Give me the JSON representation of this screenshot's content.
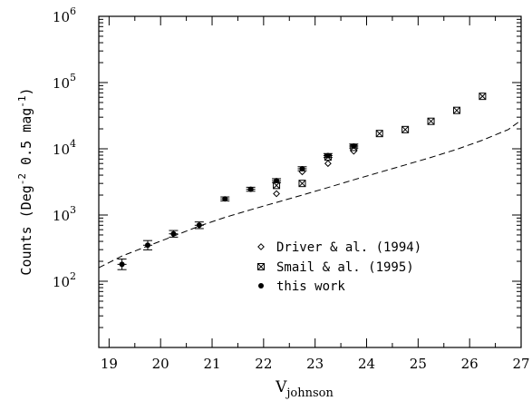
{
  "chart_data": {
    "type": "scatter",
    "xlabel_main": "V",
    "xlabel_sub": "johnson",
    "ylabel_main": "Counts (Deg",
    "ylabel_exp1": "-2",
    "ylabel_mid": " 0.5 mag",
    "ylabel_exp2": "-1",
    "ylabel_end": ")",
    "xlim": [
      18.8,
      27
    ],
    "ylim": [
      10,
      1000000
    ],
    "yscale": "log",
    "x_ticks": [
      19,
      20,
      21,
      22,
      23,
      24,
      25,
      26,
      27
    ],
    "y_tick_labels": [
      {
        "value": 100,
        "base": "10",
        "exp": "2"
      },
      {
        "value": 1000,
        "base": "10",
        "exp": "3"
      },
      {
        "value": 10000,
        "base": "10",
        "exp": "4"
      },
      {
        "value": 100000,
        "base": "10",
        "exp": "5"
      },
      {
        "value": 1000000,
        "base": "10",
        "exp": "6"
      }
    ],
    "legend_position": "lower-right",
    "series": [
      {
        "name": "Driver & al. (1994)",
        "marker": "diamond",
        "points": [
          {
            "x": 22.25,
            "y": 2100
          },
          {
            "x": 22.75,
            "y": 4500
          },
          {
            "x": 23.25,
            "y": 6000
          },
          {
            "x": 23.75,
            "y": 9200
          }
        ]
      },
      {
        "name": "Smail & al. (1995)",
        "marker": "crossed-square",
        "points": [
          {
            "x": 22.25,
            "y": 2800
          },
          {
            "x": 22.75,
            "y": 3000
          },
          {
            "x": 23.25,
            "y": 7500
          },
          {
            "x": 23.75,
            "y": 10500
          },
          {
            "x": 24.25,
            "y": 17000
          },
          {
            "x": 24.75,
            "y": 19500
          },
          {
            "x": 25.25,
            "y": 26000
          },
          {
            "x": 25.75,
            "y": 38000
          },
          {
            "x": 26.25,
            "y": 62000
          }
        ]
      },
      {
        "name": "this work",
        "marker": "filled-circle",
        "points": [
          {
            "x": 19.25,
            "y": 180,
            "err": 0.08
          },
          {
            "x": 19.75,
            "y": 350,
            "err": 0.07
          },
          {
            "x": 20.25,
            "y": 520,
            "err": 0.05
          },
          {
            "x": 20.75,
            "y": 700,
            "err": 0.05
          },
          {
            "x": 21.25,
            "y": 1750,
            "err": 0.03
          },
          {
            "x": 21.75,
            "y": 2450,
            "err": 0.03
          },
          {
            "x": 22.25,
            "y": 3300,
            "err": 0.03
          },
          {
            "x": 22.75,
            "y": 5000,
            "err": 0.03
          },
          {
            "x": 23.25,
            "y": 7900,
            "err": 0.03
          },
          {
            "x": 23.75,
            "y": 11000,
            "err": 0.03
          }
        ]
      },
      {
        "marker": "dashed-line",
        "points": [
          {
            "x": 18.8,
            "y": 160
          },
          {
            "x": 19.25,
            "y": 240
          },
          {
            "x": 19.75,
            "y": 340
          },
          {
            "x": 20.25,
            "y": 480
          },
          {
            "x": 20.75,
            "y": 680
          },
          {
            "x": 21.25,
            "y": 920
          },
          {
            "x": 21.75,
            "y": 1200
          },
          {
            "x": 22.25,
            "y": 1550
          },
          {
            "x": 22.75,
            "y": 2000
          },
          {
            "x": 23.25,
            "y": 2600
          },
          {
            "x": 23.75,
            "y": 3400
          },
          {
            "x": 24.25,
            "y": 4400
          },
          {
            "x": 24.75,
            "y": 5700
          },
          {
            "x": 25.25,
            "y": 7400
          },
          {
            "x": 25.75,
            "y": 9800
          },
          {
            "x": 26.25,
            "y": 13500
          },
          {
            "x": 26.75,
            "y": 19500
          },
          {
            "x": 27.0,
            "y": 27000
          }
        ]
      }
    ]
  }
}
